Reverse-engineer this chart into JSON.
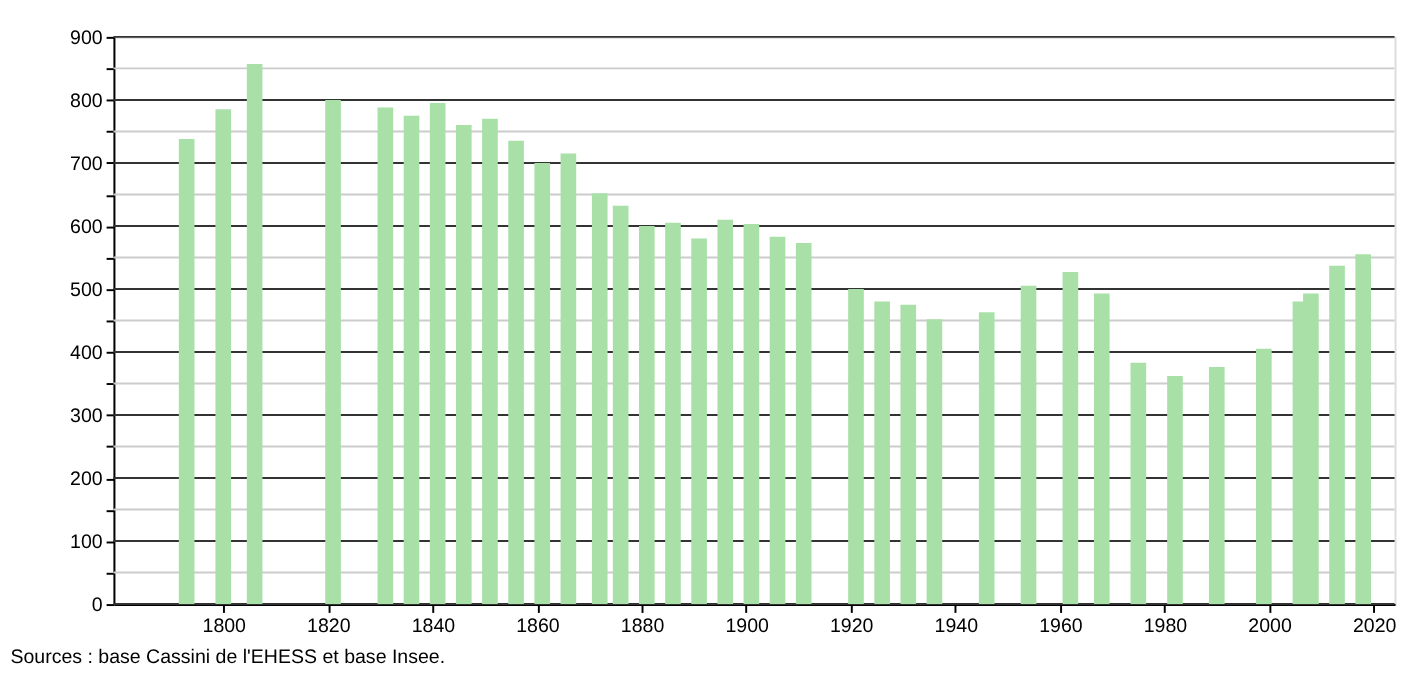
{
  "chart_data": {
    "type": "bar",
    "x": [
      1793,
      1800,
      1806,
      1821,
      1831,
      1836,
      1841,
      1846,
      1851,
      1856,
      1861,
      1866,
      1872,
      1876,
      1881,
      1886,
      1891,
      1896,
      1901,
      1906,
      1911,
      1921,
      1926,
      1931,
      1936,
      1946,
      1954,
      1962,
      1968,
      1975,
      1982,
      1990,
      1999,
      2006,
      2008,
      2013,
      2018
    ],
    "values": [
      738,
      785,
      857,
      800,
      788,
      775,
      795,
      760,
      770,
      735,
      700,
      715,
      652,
      632,
      600,
      605,
      580,
      610,
      603,
      583,
      573,
      500,
      480,
      475,
      452,
      463,
      505,
      527,
      493,
      383,
      362,
      376,
      405,
      480,
      493,
      537,
      555
    ],
    "color": "#a8e0a8",
    "xlim": [
      1779,
      2024
    ],
    "xticks": [
      1800,
      1820,
      1840,
      1860,
      1880,
      1900,
      1920,
      1940,
      1960,
      1980,
      2000,
      2020
    ],
    "ylim": [
      0,
      900
    ],
    "yticks": [
      0,
      {
        "value": 50,
        "label": null
      },
      100,
      {
        "value": 150,
        "label": null
      },
      200,
      {
        "value": 250,
        "label": null
      },
      300,
      {
        "value": 350,
        "label": null
      },
      400,
      {
        "value": 450,
        "label": null
      },
      500,
      {
        "value": 550,
        "label": null
      },
      600,
      {
        "value": 650,
        "label": null
      },
      700,
      {
        "value": 750,
        "label": null
      },
      800,
      {
        "value": 850,
        "label": null
      },
      900
    ],
    "grid": "y",
    "annotations": [
      "Sources : base Cassini de l'EHESS et base Insee."
    ]
  }
}
